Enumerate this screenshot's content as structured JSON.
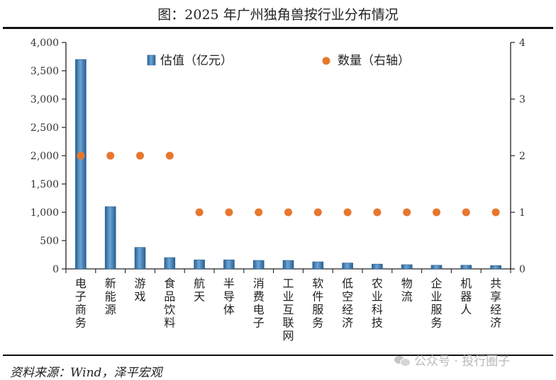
{
  "title": "图：2025 年广州独角兽按行业分布情况",
  "source": "资料来源：Wind，泽平宏观",
  "watermark": "公众号 · 投行圈子",
  "colors": {
    "bar": "#3f7fb7",
    "bar_dark": "#2c5f8f",
    "dot": "#e8772e"
  },
  "chart_data": {
    "type": "bar",
    "categories": [
      "电子商务",
      "新能源",
      "游戏",
      "食品饮料",
      "航天",
      "半导体",
      "消费电子",
      "工业互联网",
      "软件服务",
      "低空经济",
      "农业科技",
      "物流",
      "企业服务",
      "机器人",
      "共享经济"
    ],
    "series": [
      {
        "name": "估值（亿元）",
        "type": "bar",
        "axis": "left",
        "values": [
          3700,
          1100,
          380,
          200,
          160,
          160,
          150,
          150,
          125,
          105,
          85,
          75,
          65,
          65,
          60
        ]
      },
      {
        "name": "数量（右轴）",
        "type": "scatter",
        "axis": "right",
        "values": [
          2,
          2,
          2,
          2,
          1,
          1,
          1,
          1,
          1,
          1,
          1,
          1,
          1,
          1,
          1
        ]
      }
    ],
    "yleft": {
      "lim": [
        0,
        4000
      ],
      "ticks": [
        "0",
        "500",
        "1,000",
        "1,500",
        "2,000",
        "2,500",
        "3,000",
        "3,500",
        "4,000"
      ]
    },
    "yright": {
      "lim": [
        0,
        4
      ],
      "ticks": [
        "0",
        "1",
        "2",
        "3",
        "4"
      ]
    },
    "grid": false,
    "legend": "top-center"
  }
}
